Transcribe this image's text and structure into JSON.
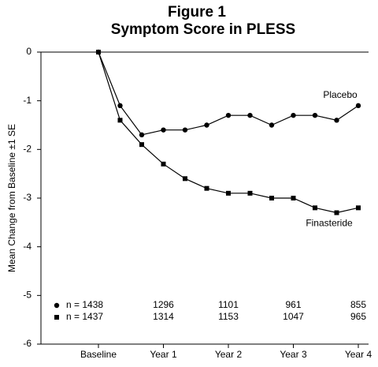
{
  "chart_data": {
    "type": "line",
    "title": "Figure 1",
    "subtitle": "Symptom Score in PLESS",
    "y_label": "Mean Change from Baseline ±1 SE",
    "categories": [
      "Baseline",
      null,
      null,
      "Year 1",
      null,
      null,
      "Year 2",
      null,
      null,
      "Year 3",
      null,
      null,
      "Year 4"
    ],
    "series": [
      {
        "name": "Placebo",
        "marker": "circle",
        "color": "#000000",
        "values": [
          0,
          -1.1,
          -1.7,
          -1.6,
          -1.6,
          -1.5,
          -1.3,
          -1.3,
          -1.5,
          -1.3,
          -1.3,
          -1.4,
          -1.1
        ]
      },
      {
        "name": "Finasteride",
        "marker": "square",
        "color": "#000000",
        "values": [
          0,
          -1.4,
          -1.9,
          -2.3,
          -2.6,
          -2.8,
          -2.9,
          -2.9,
          -3.0,
          -3.0,
          -3.2,
          -3.3,
          -3.2
        ]
      }
    ],
    "ylim": [
      -6,
      0
    ],
    "yticks": [
      0,
      -1,
      -2,
      -3,
      -4,
      -5,
      -6
    ],
    "grid": false,
    "n_table": [
      [
        "n = 1438",
        "1296",
        "1101",
        "961",
        "855"
      ],
      [
        "n = 1437",
        "1314",
        "1153",
        "1047",
        "965"
      ]
    ]
  }
}
